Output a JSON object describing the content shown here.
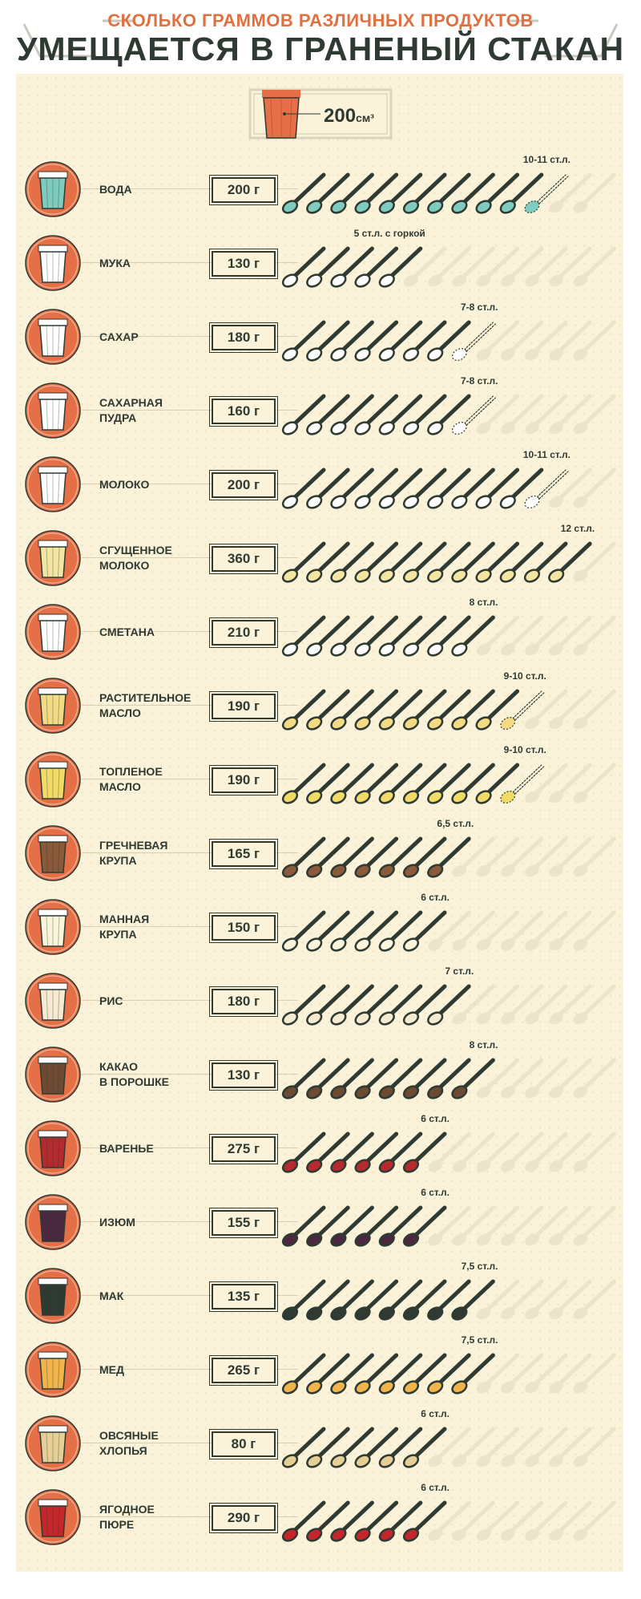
{
  "header": {
    "subtitle": "СКОЛЬКО ГРАММОВ РАЗЛИЧНЫХ ПРОДУКТОВ",
    "title": "УМЕЩАЕТСЯ В ГРАНЕНЫЙ СТАКАН"
  },
  "legend": {
    "value": "200",
    "unit": "см³"
  },
  "colors": {
    "title_orange": "#e0703f",
    "dark": "#2f3a33",
    "circle": "#e56f47",
    "ghost_spoon": "#ece3c8"
  },
  "spoon_slots": 13,
  "products": [
    {
      "name": "ВОДА",
      "weight": "200 г",
      "spoons": "10-11 ст.л.",
      "full": 10,
      "dotted": 1,
      "color": "#7ecbc0"
    },
    {
      "name": "МУКА",
      "weight": "130 г",
      "spoons": "5 ст.л. с горкой",
      "full": 5,
      "dotted": 0,
      "color": "#ffffff"
    },
    {
      "name": "САХАР",
      "weight": "180 г",
      "spoons": "7-8 ст.л.",
      "full": 7,
      "dotted": 1,
      "color": "#ffffff"
    },
    {
      "name": "САХАРНАЯ\nПУДРА",
      "weight": "160 г",
      "spoons": "7-8 ст.л.",
      "full": 7,
      "dotted": 1,
      "color": "#ffffff"
    },
    {
      "name": "МОЛОКО",
      "weight": "200 г",
      "spoons": "10-11 ст.л.",
      "full": 10,
      "dotted": 1,
      "color": "#ffffff"
    },
    {
      "name": "СГУЩЕННОЕ\nМОЛОКО",
      "weight": "360 г",
      "spoons": "12 ст.л.",
      "full": 12,
      "dotted": 0,
      "color": "#f3e6a3"
    },
    {
      "name": "СМЕТАНА",
      "weight": "210 г",
      "spoons": "8 ст.л.",
      "full": 8,
      "dotted": 0,
      "color": "#ffffff"
    },
    {
      "name": "РАСТИТЕЛЬНОЕ\nМАСЛО",
      "weight": "190 г",
      "spoons": "9-10 ст.л.",
      "full": 9,
      "dotted": 1,
      "color": "#f3db86"
    },
    {
      "name": "ТОПЛЕНОЕ\nМАСЛО",
      "weight": "190 г",
      "spoons": "9-10 ст.л.",
      "full": 9,
      "dotted": 1,
      "color": "#f2da66"
    },
    {
      "name": "ГРЕЧНЕВАЯ\nКРУПА",
      "weight": "165 г",
      "spoons": "6,5 ст.л.",
      "full": 7,
      "dotted": 0,
      "color": "#8a5a3b"
    },
    {
      "name": "МАННАЯ\nКРУПА",
      "weight": "150 г",
      "spoons": "6 ст.л.",
      "full": 6,
      "dotted": 0,
      "color": "#fbf5dc"
    },
    {
      "name": "РИС",
      "weight": "180 г",
      "spoons": "7 ст.л.",
      "full": 7,
      "dotted": 0,
      "color": "#f6ead0"
    },
    {
      "name": "КАКАО\nВ ПОРОШКЕ",
      "weight": "130 г",
      "spoons": "8 ст.л.",
      "full": 8,
      "dotted": 0,
      "color": "#6e4a33"
    },
    {
      "name": "ВАРЕНЬЕ",
      "weight": "275 г",
      "spoons": "6 ст.л.",
      "full": 6,
      "dotted": 0,
      "color": "#b42a2e"
    },
    {
      "name": "ИЗЮМ",
      "weight": "155 г",
      "spoons": "6 ст.л.",
      "full": 6,
      "dotted": 0,
      "color": "#4a2940"
    },
    {
      "name": "МАК",
      "weight": "135 г",
      "spoons": "7,5 ст.л.",
      "full": 8,
      "dotted": 0,
      "color": "#2f3a33"
    },
    {
      "name": "МЕД",
      "weight": "265 г",
      "spoons": "7,5 ст.л.",
      "full": 8,
      "dotted": 0,
      "color": "#f0b44a"
    },
    {
      "name": "ОВСЯНЫЕ\nХЛОПЬЯ",
      "weight": "80 г",
      "spoons": "6 ст.л.",
      "full": 6,
      "dotted": 0,
      "color": "#e6cf96"
    },
    {
      "name": "ЯГОДНОЕ\nПЮРЕ",
      "weight": "290 г",
      "spoons": "6 ст.л.",
      "full": 6,
      "dotted": 0,
      "color": "#c4262b"
    }
  ]
}
